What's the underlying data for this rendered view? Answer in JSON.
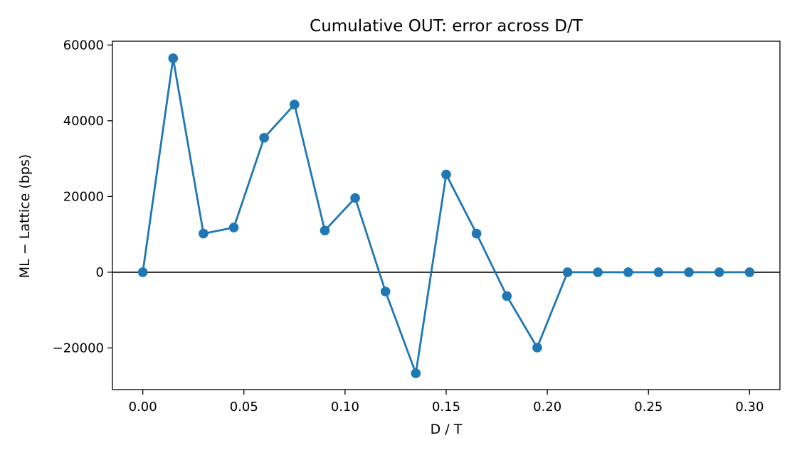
{
  "chart_data": {
    "type": "line",
    "title": "Cumulative OUT: error across D/T",
    "xlabel": "D / T",
    "ylabel": "ML − Lattice (bps)",
    "xlim": [
      -0.015,
      0.315
    ],
    "ylim": [
      -31000,
      61000
    ],
    "x_ticks": [
      0.0,
      0.05,
      0.1,
      0.15,
      0.2,
      0.25,
      0.3
    ],
    "x_tick_labels": [
      "0.00",
      "0.05",
      "0.10",
      "0.15",
      "0.20",
      "0.25",
      "0.30"
    ],
    "y_ticks": [
      -20000,
      0,
      20000,
      40000,
      60000
    ],
    "y_tick_labels": [
      "−20000",
      "0",
      "20000",
      "40000",
      "60000"
    ],
    "grid": false,
    "reference_line": {
      "y": 0,
      "color": "#000000"
    },
    "series": [
      {
        "color": "#1f77b4",
        "marker": "circle",
        "x": [
          0.0,
          0.015,
          0.03,
          0.045,
          0.06,
          0.075,
          0.09,
          0.105,
          0.12,
          0.135,
          0.15,
          0.165,
          0.18,
          0.195,
          0.21,
          0.225,
          0.24,
          0.255,
          0.27,
          0.285,
          0.3
        ],
        "y": [
          0,
          56500,
          10200,
          11800,
          35500,
          44300,
          11000,
          19600,
          -5100,
          -26700,
          25800,
          10200,
          -6300,
          -19900,
          0,
          0,
          0,
          0,
          0,
          0,
          0
        ]
      }
    ]
  }
}
